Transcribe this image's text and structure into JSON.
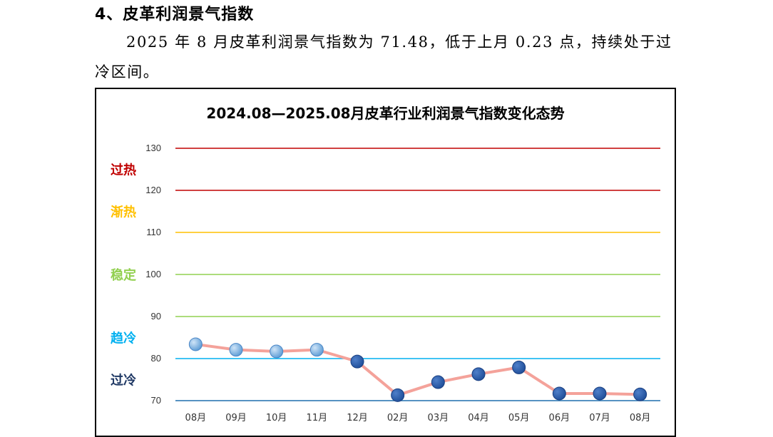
{
  "section": {
    "heading": "4、皮革利润景气指数",
    "paragraph": "2025 年 8 月皮革利润景气指数为 71.48，低于上月 0.23 点，持续处于过冷区间。"
  },
  "chart_data": {
    "type": "line",
    "title": "2024.08—2025.08月皮革行业利润景气指数变化态势",
    "categories": [
      "08月",
      "09月",
      "10月",
      "11月",
      "12月",
      "02月",
      "03月",
      "04月",
      "05月",
      "06月",
      "07月",
      "08月"
    ],
    "values": [
      83.4,
      82.1,
      81.7,
      82.1,
      79.3,
      71.3,
      74.4,
      76.3,
      77.9,
      71.7,
      71.7,
      71.48
    ],
    "ylim": [
      70,
      130
    ],
    "yticks": [
      130,
      120,
      110,
      100,
      90,
      80,
      70
    ],
    "thresholds": [
      {
        "value": 130,
        "color": "#c00000"
      },
      {
        "value": 120,
        "color": "#c00000"
      },
      {
        "value": 110,
        "color": "#ffc000"
      },
      {
        "value": 100,
        "color": "#92d050"
      },
      {
        "value": 90,
        "color": "#92d050"
      },
      {
        "value": 80,
        "color": "#00b0f0"
      },
      {
        "value": 70,
        "color": "#1f6fae"
      }
    ],
    "zones": [
      {
        "label": "过热",
        "value": 125,
        "color": "#c00000"
      },
      {
        "label": "渐热",
        "value": 115,
        "color": "#ffc000"
      },
      {
        "label": "稳定",
        "value": 100,
        "color": "#92d050"
      },
      {
        "label": "趋冷",
        "value": 85,
        "color": "#00b0f0"
      },
      {
        "label": "过冷",
        "value": 75,
        "color": "#1f3864"
      }
    ],
    "line_color": "#f4a29a",
    "marker_light": "#5b9bd5",
    "marker_dark": "#1f4e99",
    "dark_marker_threshold": 80
  }
}
